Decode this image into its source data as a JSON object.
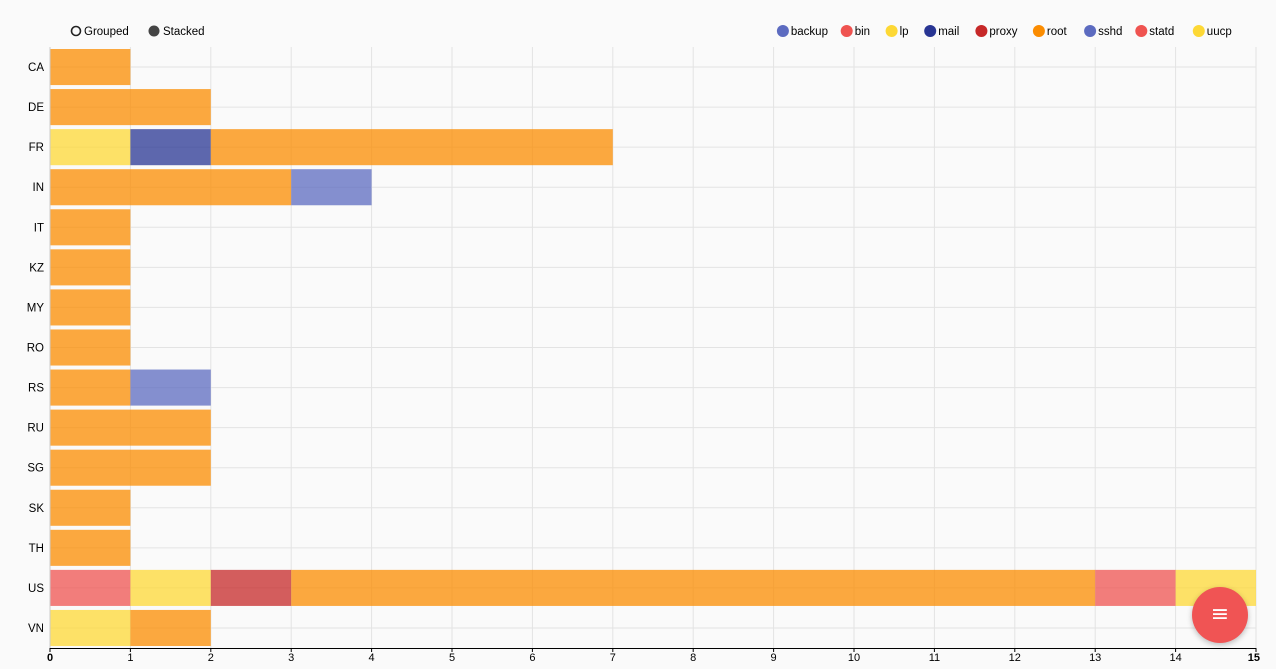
{
  "controls": {
    "grouped_label": "Grouped",
    "stacked_label": "Stacked",
    "selected": "Stacked"
  },
  "fab": {
    "icon": "menu-icon",
    "glyph": "≡",
    "color": "#f05454"
  },
  "chart_data": {
    "type": "bar",
    "orientation": "horizontal",
    "mode": "stacked",
    "title": "",
    "xlabel": "",
    "ylabel": "",
    "xlim": [
      0,
      15
    ],
    "x_ticks": [
      0,
      1,
      2,
      3,
      4,
      5,
      6,
      7,
      8,
      9,
      10,
      11,
      12,
      13,
      14,
      15
    ],
    "grid": true,
    "legend_position": "top-right",
    "categories": [
      "CA",
      "DE",
      "FR",
      "IN",
      "IT",
      "KZ",
      "MY",
      "RO",
      "RS",
      "RU",
      "SG",
      "SK",
      "TH",
      "US",
      "VN"
    ],
    "series": [
      {
        "name": "backup",
        "color": "#5c6bc0",
        "values": [
          0,
          0,
          0,
          0,
          0,
          0,
          0,
          0,
          0,
          0,
          0,
          0,
          0,
          0,
          0
        ]
      },
      {
        "name": "bin",
        "color": "#ef5350",
        "values": [
          0,
          0,
          0,
          0,
          0,
          0,
          0,
          0,
          0,
          0,
          0,
          0,
          0,
          1,
          0
        ]
      },
      {
        "name": "lp",
        "color": "#fdd835",
        "values": [
          0,
          0,
          1,
          0,
          0,
          0,
          0,
          0,
          0,
          0,
          0,
          0,
          0,
          1,
          1
        ]
      },
      {
        "name": "mail",
        "color": "#283593",
        "values": [
          0,
          0,
          1,
          0,
          0,
          0,
          0,
          0,
          0,
          0,
          0,
          0,
          0,
          0,
          0
        ]
      },
      {
        "name": "proxy",
        "color": "#c62828",
        "values": [
          0,
          0,
          0,
          0,
          0,
          0,
          0,
          0,
          0,
          0,
          0,
          0,
          0,
          1,
          0
        ]
      },
      {
        "name": "root",
        "color": "#fb8c00",
        "values": [
          1,
          2,
          5,
          3,
          1,
          1,
          1,
          1,
          1,
          2,
          2,
          1,
          1,
          10,
          1
        ]
      },
      {
        "name": "sshd",
        "color": "#5c6bc0",
        "values": [
          0,
          0,
          0,
          1,
          0,
          0,
          0,
          0,
          1,
          0,
          0,
          0,
          0,
          0,
          0
        ]
      },
      {
        "name": "statd",
        "color": "#ef5350",
        "values": [
          0,
          0,
          0,
          0,
          0,
          0,
          0,
          0,
          0,
          0,
          0,
          0,
          0,
          1,
          0
        ]
      },
      {
        "name": "uucp",
        "color": "#fdd835",
        "values": [
          0,
          0,
          0,
          0,
          0,
          0,
          0,
          0,
          0,
          0,
          0,
          0,
          0,
          1,
          0
        ]
      }
    ]
  }
}
